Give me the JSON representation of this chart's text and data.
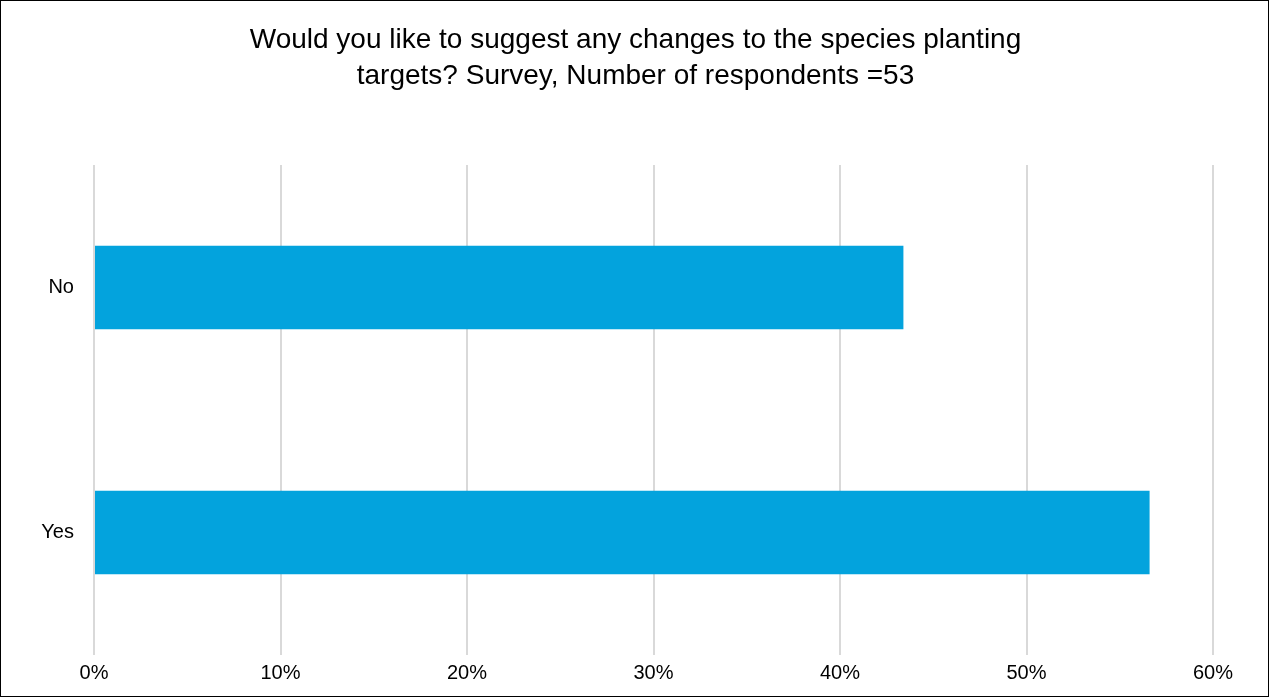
{
  "chart_data": {
    "type": "bar",
    "orientation": "horizontal",
    "title": "Would you like to suggest any changes to the species planting targets? Survey, Number of respondents =53",
    "categories": [
      "No",
      "Yes"
    ],
    "values": [
      43.4,
      56.6
    ],
    "color": "#03a3dd",
    "xlim": [
      0,
      60
    ],
    "xticks": [
      {
        "value": 0,
        "label": "0%"
      },
      {
        "value": 10,
        "label": "10%"
      },
      {
        "value": 20,
        "label": "20%"
      },
      {
        "value": 30,
        "label": "30%"
      },
      {
        "value": 40,
        "label": "40%"
      },
      {
        "value": 50,
        "label": "50%"
      },
      {
        "value": 60,
        "label": "60%"
      }
    ],
    "grid": "x"
  }
}
